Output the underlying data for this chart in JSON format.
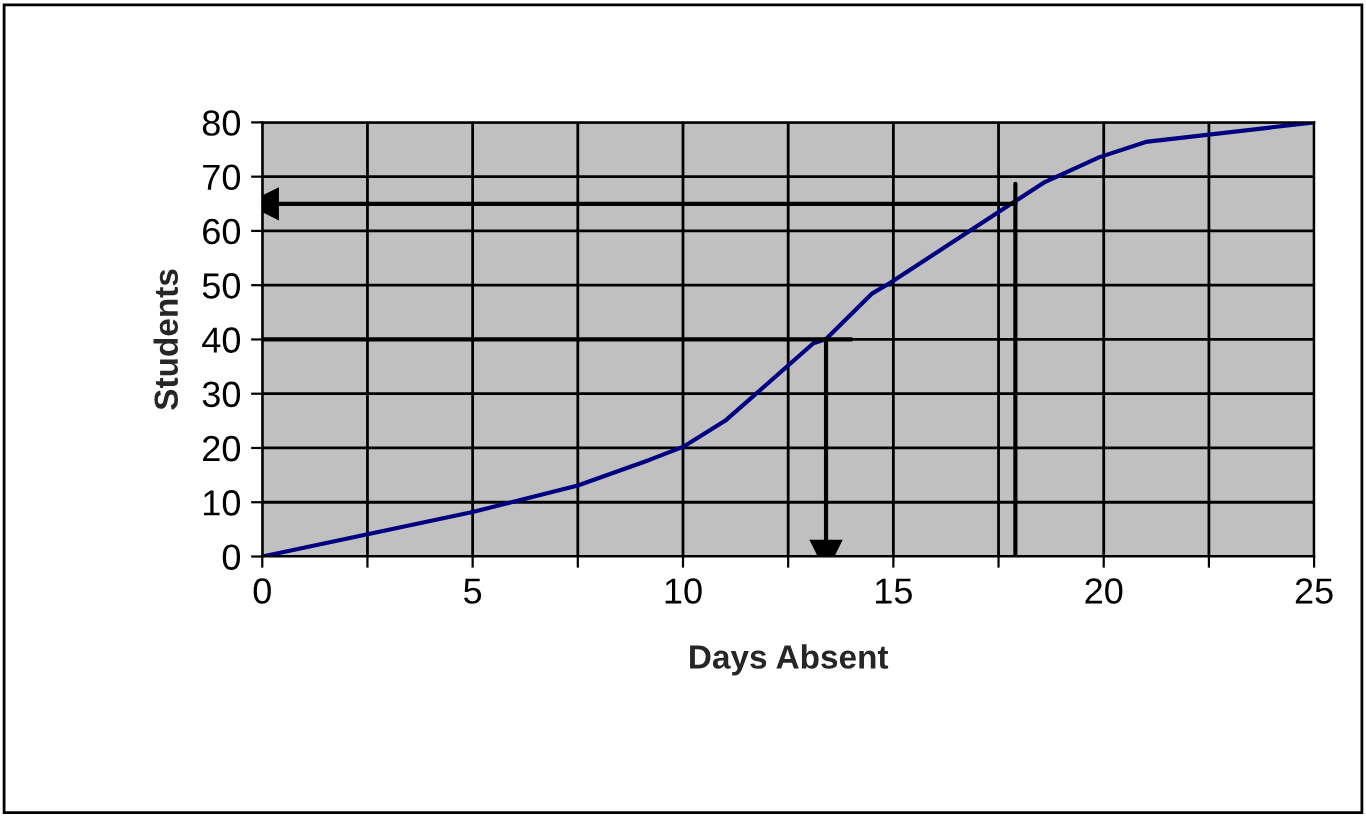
{
  "chart_data": {
    "type": "line",
    "xlabel": "Days Absent",
    "ylabel": "Students",
    "xlim": [
      0,
      25
    ],
    "ylim": [
      0,
      80
    ],
    "xticks": [
      0,
      {
        "value": 2.5,
        "label": null
      },
      5,
      {
        "value": 7.5,
        "label": null
      },
      10,
      {
        "value": 12.5,
        "label": null
      },
      15,
      {
        "value": 17.5,
        "label": null
      },
      20,
      {
        "value": 22.5,
        "label": null
      },
      25
    ],
    "yticks": [
      0,
      10,
      20,
      30,
      40,
      50,
      60,
      70,
      80
    ],
    "grid": true,
    "legend": false,
    "series": [
      {
        "color": "#000080",
        "x": [
          0,
          5,
          7.5,
          9.2,
          10,
          11,
          13.1,
          13.4,
          14.5,
          14.9,
          17.8,
          18.6,
          19.9,
          21.0,
          25
        ],
        "values": [
          0,
          8.2,
          13.1,
          17.8,
          20.2,
          25,
          39.3,
          40.1,
          48.5,
          50.3,
          65,
          69,
          73.6,
          76.4,
          80
        ]
      },
      {
        "color": "#000000",
        "x": [
          0,
          14
        ],
        "values": [
          40,
          40
        ]
      },
      {
        "color": "#000000",
        "x": [
          13.4,
          13.4
        ],
        "values": [
          40,
          0
        ],
        "marker": "triangle"
      },
      {
        "color": "#000000",
        "x": [
          17.9,
          17.9
        ],
        "values": [
          0,
          68.7
        ]
      },
      {
        "color": "#000000",
        "x": [
          17.9,
          0
        ],
        "values": [
          65,
          65
        ],
        "marker": "triangle"
      }
    ]
  }
}
